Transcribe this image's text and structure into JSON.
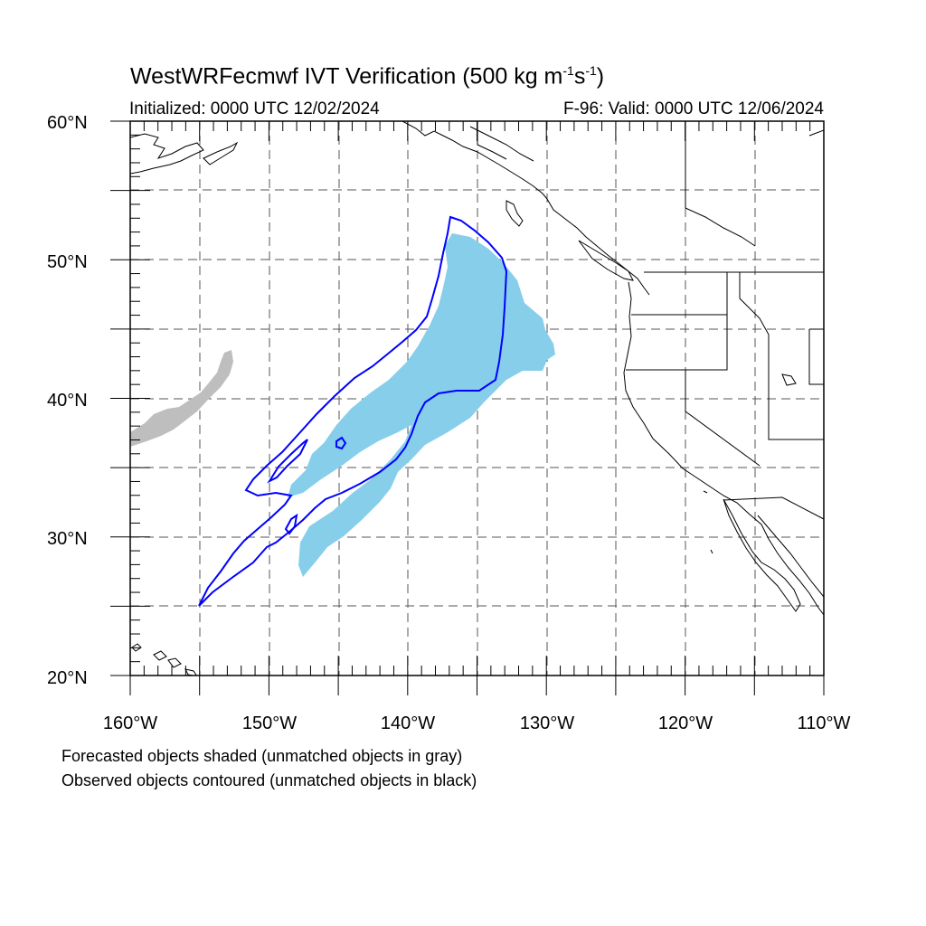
{
  "header": {
    "title_prefix": "WestWRFecmwf IVT Verification (500 kg m",
    "title_exp1": "-1",
    "title_mid": "s",
    "title_exp2": "-1",
    "title_suffix": ")",
    "initialized": "Initialized: 0000 UTC 12/02/2024",
    "valid": "F-96: Valid: 0000 UTC 12/06/2024"
  },
  "map": {
    "lat_labels": [
      "60°N",
      "50°N",
      "40°N",
      "30°N",
      "20°N"
    ],
    "lon_labels": [
      "160°W",
      "150°W",
      "140°W",
      "130°W",
      "120°W",
      "110°W"
    ],
    "colors": {
      "forecast_matched": "#87ceeb",
      "forecast_unmatched": "#bebebe",
      "observed_matched": "#0000ff",
      "observed_unmatched": "#000000",
      "coastline": "#000000"
    }
  },
  "legend": {
    "line1": "Forecasted objects shaded (unmatched objects in gray)",
    "line2": "Observed objects contoured (unmatched objects in black)"
  }
}
